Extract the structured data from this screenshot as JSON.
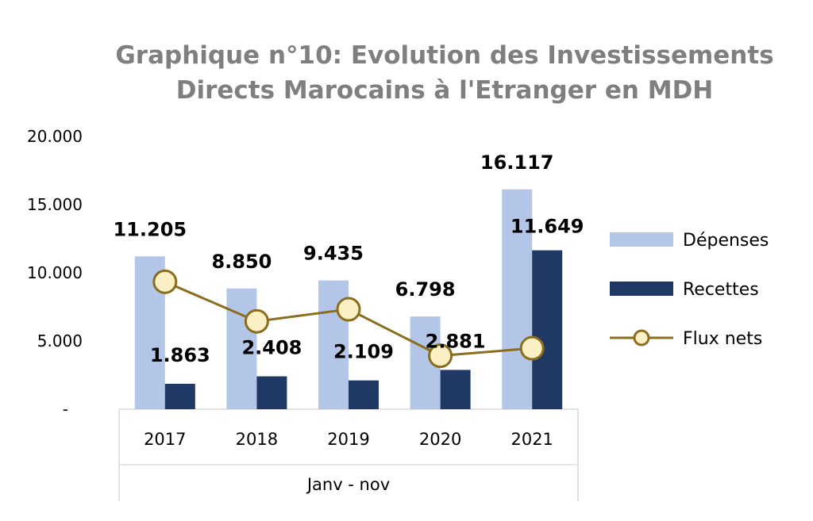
{
  "chart_data": {
    "type": "bar",
    "title_line1": "Graphique n°10: Evolution des Investissements",
    "title_line2": "Directs Marocains à l'Etranger en MDH",
    "categories": [
      "2017",
      "2018",
      "2019",
      "2020",
      "2021"
    ],
    "category_group_label": "Janv - nov",
    "ylim": [
      0,
      20000
    ],
    "yticks": [
      0,
      5000,
      10000,
      15000,
      20000
    ],
    "ytick_labels": [
      "-",
      "5.000",
      "10.000",
      "15.000",
      "20.000"
    ],
    "series": [
      {
        "name": "Dépenses",
        "kind": "bar",
        "color": "#b4c6e7",
        "values": [
          11205,
          8850,
          9435,
          6798,
          16117
        ],
        "labels": [
          "11.205",
          "8.850",
          "9.435",
          "6.798",
          "16.117"
        ]
      },
      {
        "name": "Recettes",
        "kind": "bar",
        "color": "#203864",
        "values": [
          1863,
          2408,
          2109,
          2881,
          11649
        ],
        "labels": [
          "1.863",
          "2.408",
          "2.109",
          "2.881",
          "11.649"
        ]
      },
      {
        "name": "Flux nets",
        "kind": "line",
        "color": "#8b6d1e",
        "marker_fill": "#fbf0c4",
        "values": [
          9342,
          6442,
          7326,
          3917,
          4468
        ]
      }
    ],
    "legend_position": "right",
    "grid": false
  }
}
